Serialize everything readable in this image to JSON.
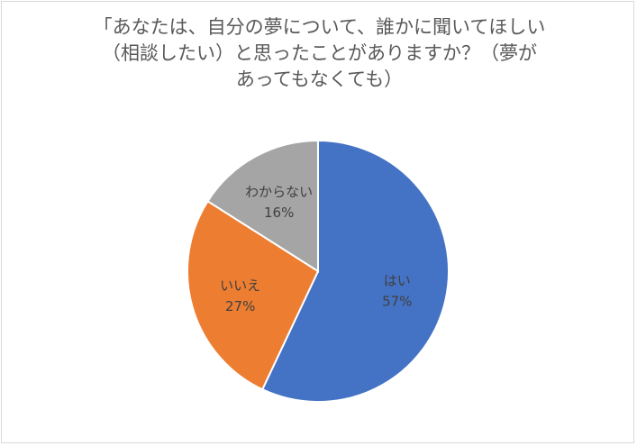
{
  "chart_data": {
    "type": "pie",
    "title_lines": [
      "「あなたは、自分の夢について、誰かに聞いてほしい",
      "（相談したい）と思ったことがありますか？（夢が",
      "あってもなくても）"
    ],
    "categories": [
      "はい",
      "いいえ",
      "わからない"
    ],
    "values": [
      57,
      27,
      16
    ],
    "value_labels": [
      "57%",
      "27%",
      "16%"
    ],
    "colors": [
      "#4472c4",
      "#ed7d31",
      "#a5a5a5"
    ],
    "start_angle_deg": 0,
    "direction": "clockwise",
    "legend": "none",
    "data_labels": "inside"
  }
}
